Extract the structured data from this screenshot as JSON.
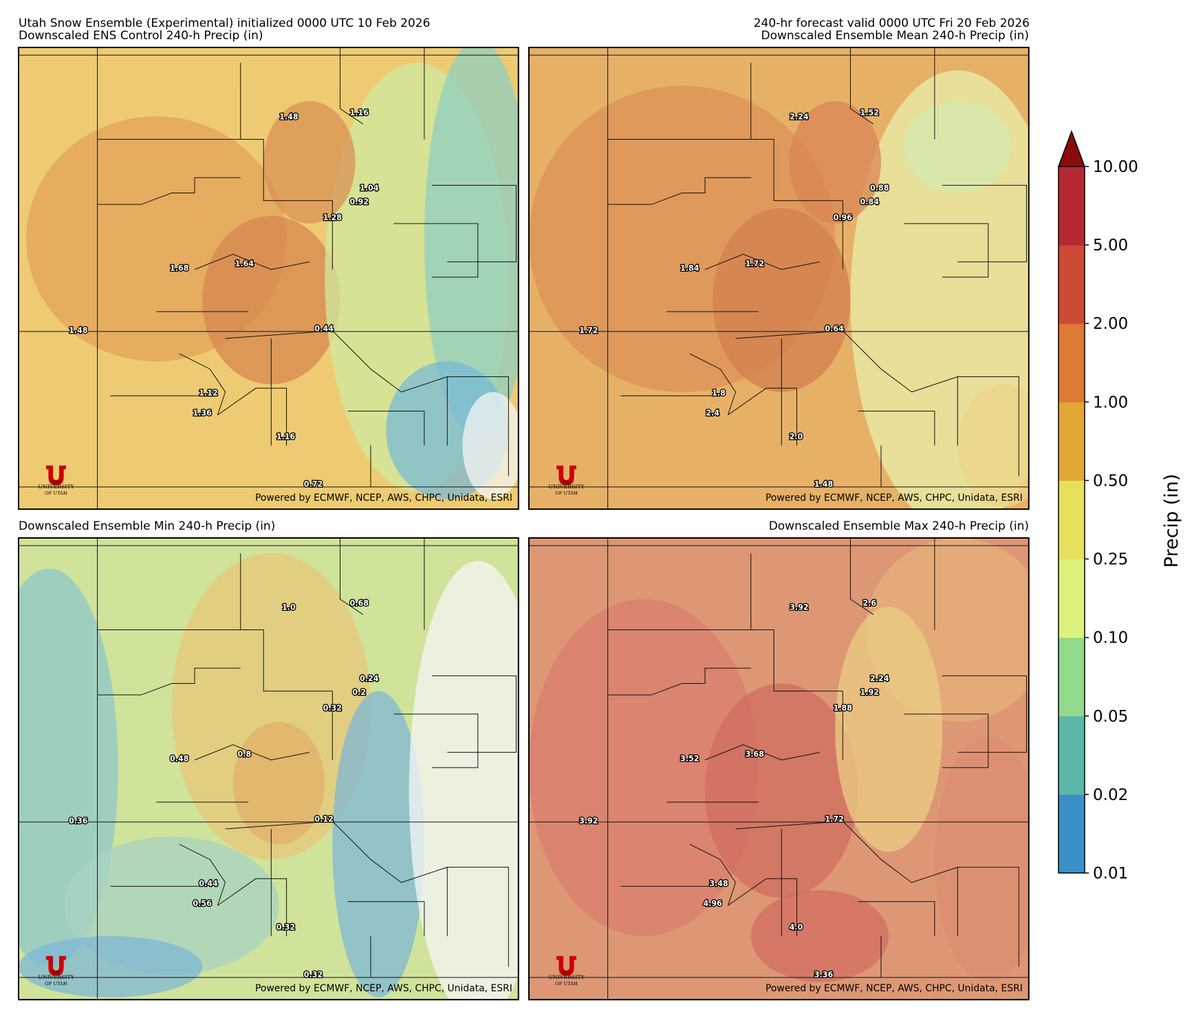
{
  "header": {
    "title_left": "Utah Snow Ensemble (Experimental) initialized 0000 UTC 10 Feb 2026",
    "title_right": "240-hr forecast valid 0000 UTC Fri 20 Feb 2026"
  },
  "credit": "Powered by ECMWF, NCEP, AWS, CHPC, Unidata, ESRI",
  "logo": {
    "line1": "THE",
    "line2": "UNIVERSITY",
    "line3": "OF UTAH"
  },
  "panels": [
    {
      "title": "Downscaled ENS Control 240-h Precip (in)",
      "labels": [
        "1.48",
        "1.16",
        "1.04",
        "0.92",
        "1.28",
        "1.68",
        "1.64",
        "1.48",
        "0.44",
        "1.12",
        "1.36",
        "1.16",
        "0.72"
      ]
    },
    {
      "title": "Downscaled Ensemble Mean 240-h Precip (in)",
      "labels": [
        "2.24",
        "1.52",
        "0.88",
        "0.84",
        "0.96",
        "1.84",
        "1.72",
        "1.72",
        "0.64",
        "1.8",
        "2.4",
        "2.0",
        "1.48"
      ]
    },
    {
      "title": "Downscaled Ensemble Min 240-h Precip (in)",
      "labels": [
        "1.0",
        "0.68",
        "0.24",
        "0.2",
        "0.32",
        "0.48",
        "0.8",
        "0.36",
        "0.12",
        "0.44",
        "0.56",
        "0.32",
        "0.32"
      ]
    },
    {
      "title": "Downscaled Ensemble Max 240-h Precip (in)",
      "labels": [
        "3.92",
        "2.6",
        "2.24",
        "1.92",
        "1.88",
        "3.52",
        "3.68",
        "3.92",
        "1.72",
        "3.48",
        "4.96",
        "4.0",
        "3.36"
      ]
    }
  ],
  "colorbar": {
    "label": "Precip (in)",
    "ticks": [
      {
        "value": 0.01,
        "label": "0.01"
      },
      {
        "value": 0.02,
        "label": "0.02"
      },
      {
        "value": 0.05,
        "label": "0.05"
      },
      {
        "value": 0.1,
        "label": "0.10"
      },
      {
        "value": 0.25,
        "label": "0.25"
      },
      {
        "value": 0.5,
        "label": "0.50"
      },
      {
        "value": 1,
        "label": "1.00"
      },
      {
        "value": 2,
        "label": "2.00"
      },
      {
        "value": 5,
        "label": "5.00"
      },
      {
        "value": 10,
        "label": "10.00"
      }
    ],
    "colors": [
      "#3b8fc7",
      "#5cb6aa",
      "#92d98b",
      "#dcf27c",
      "#e6e15c",
      "#e0a734",
      "#dc7935",
      "#cb4a34",
      "#b5282f"
    ],
    "extend_color": "#8b0a0a"
  }
}
